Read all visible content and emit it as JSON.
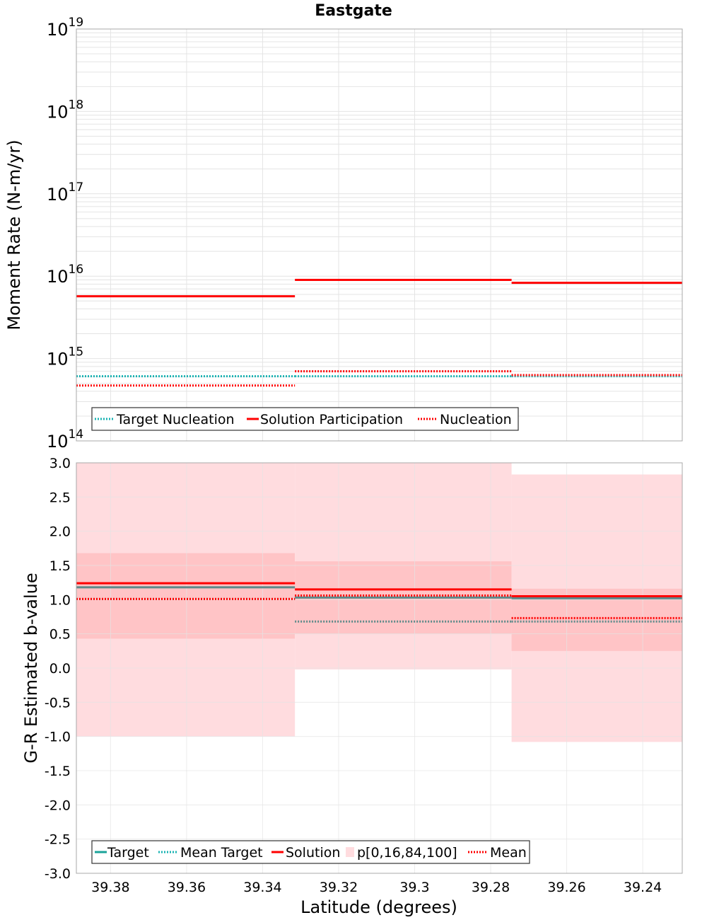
{
  "colors": {
    "target": "#1aa39a",
    "target_gray": "#5d8a8a",
    "mean_target": "#1ab3b3",
    "solution": "#ff0000",
    "band_outer": "#ffdcdf",
    "band_inner": "#ffc4c6",
    "mean": "#ff0000",
    "grid": "#e4e4e4",
    "frame": "#a8a8a8"
  },
  "chart_data": [
    {
      "type": "line",
      "title": "Eastgate",
      "ylabel": "Moment Rate (N-m/yr)",
      "xlabel": "",
      "yscale": "log",
      "ylim_exp": [
        14,
        19
      ],
      "ytick_labels": [
        {
          "base": "10",
          "exp": "19"
        },
        {
          "base": "10",
          "exp": "18"
        },
        {
          "base": "10",
          "exp": "17"
        },
        {
          "base": "10",
          "exp": "16"
        },
        {
          "base": "10",
          "exp": "15"
        },
        {
          "base": "10",
          "exp": "14"
        }
      ],
      "xlim": [
        39.389,
        39.2296
      ],
      "bins": [
        [
          39.389,
          39.3315
        ],
        [
          39.3315,
          39.2745
        ],
        [
          39.2745,
          39.2296
        ]
      ],
      "series": [
        {
          "name": "Target Nucleation",
          "style": "dotted",
          "color_key": "mean_target",
          "values": [
            610000000000000.0,
            610000000000000.0,
            610000000000000.0
          ]
        },
        {
          "name": "Solution Participation",
          "style": "solid",
          "color_key": "solution",
          "values": [
            5700000000000000.0,
            9000000000000000.0,
            8300000000000000.0
          ]
        },
        {
          "name": "Nucleation",
          "style": "dotted",
          "color_key": "mean",
          "values": [
            470000000000000.0,
            700000000000000.0,
            630000000000000.0
          ]
        }
      ],
      "legend": [
        "Target Nucleation",
        "Solution Participation",
        "Nucleation"
      ],
      "legend_position": "bottom-left"
    },
    {
      "type": "line",
      "title": "",
      "ylabel": "G-R Estimated b-value",
      "xlabel": "Latitude (degrees)",
      "ylim": [
        -3.0,
        3.0
      ],
      "yticks": [
        3.0,
        2.5,
        2.0,
        1.5,
        1.0,
        0.5,
        0.0,
        -0.5,
        -1.0,
        -1.5,
        -2.0,
        -2.5,
        -3.0
      ],
      "ytick_labels": [
        "3.0",
        "2.5",
        "2.0",
        "1.5",
        "1.0",
        "0.5",
        "0.0",
        "-0.5",
        "-1.0",
        "-1.5",
        "-2.0",
        "-2.5",
        "-3.0"
      ],
      "xticks": [
        39.38,
        39.36,
        39.34,
        39.32,
        39.3,
        39.28,
        39.26,
        39.24
      ],
      "xtick_labels": [
        "39.38",
        "39.36",
        "39.34",
        "39.32",
        "39.3",
        "39.28",
        "39.26",
        "39.24"
      ],
      "xlim": [
        39.389,
        39.2296
      ],
      "bins": [
        [
          39.389,
          39.3315
        ],
        [
          39.3315,
          39.2745
        ],
        [
          39.2745,
          39.2296
        ]
      ],
      "bands": {
        "name": "p[0,16,84,100]",
        "p0": [
          -1.0,
          -0.02,
          -1.08
        ],
        "p16": [
          0.43,
          0.5,
          0.25
        ],
        "p84": [
          1.68,
          1.56,
          1.16
        ],
        "p100": [
          3.0,
          3.0,
          2.83
        ]
      },
      "series": [
        {
          "name": "Target",
          "style": "solid",
          "color_key": "target_gray",
          "values": [
            1.18,
            1.03,
            1.02
          ]
        },
        {
          "name": "Mean Target",
          "style": "dotted",
          "color_key": "target_gray",
          "values": [
            1.01,
            0.68,
            0.68
          ]
        },
        {
          "name": "Solution",
          "style": "solid",
          "color_key": "solution",
          "values": [
            1.24,
            1.15,
            1.05
          ]
        },
        {
          "name": "Mean",
          "style": "dotted",
          "color_key": "mean",
          "values": [
            1.01,
            1.06,
            0.73
          ]
        }
      ],
      "legend": [
        "Target",
        "Mean Target",
        "Solution",
        "p[0,16,84,100]",
        "Mean"
      ],
      "legend_position": "bottom-left"
    }
  ]
}
